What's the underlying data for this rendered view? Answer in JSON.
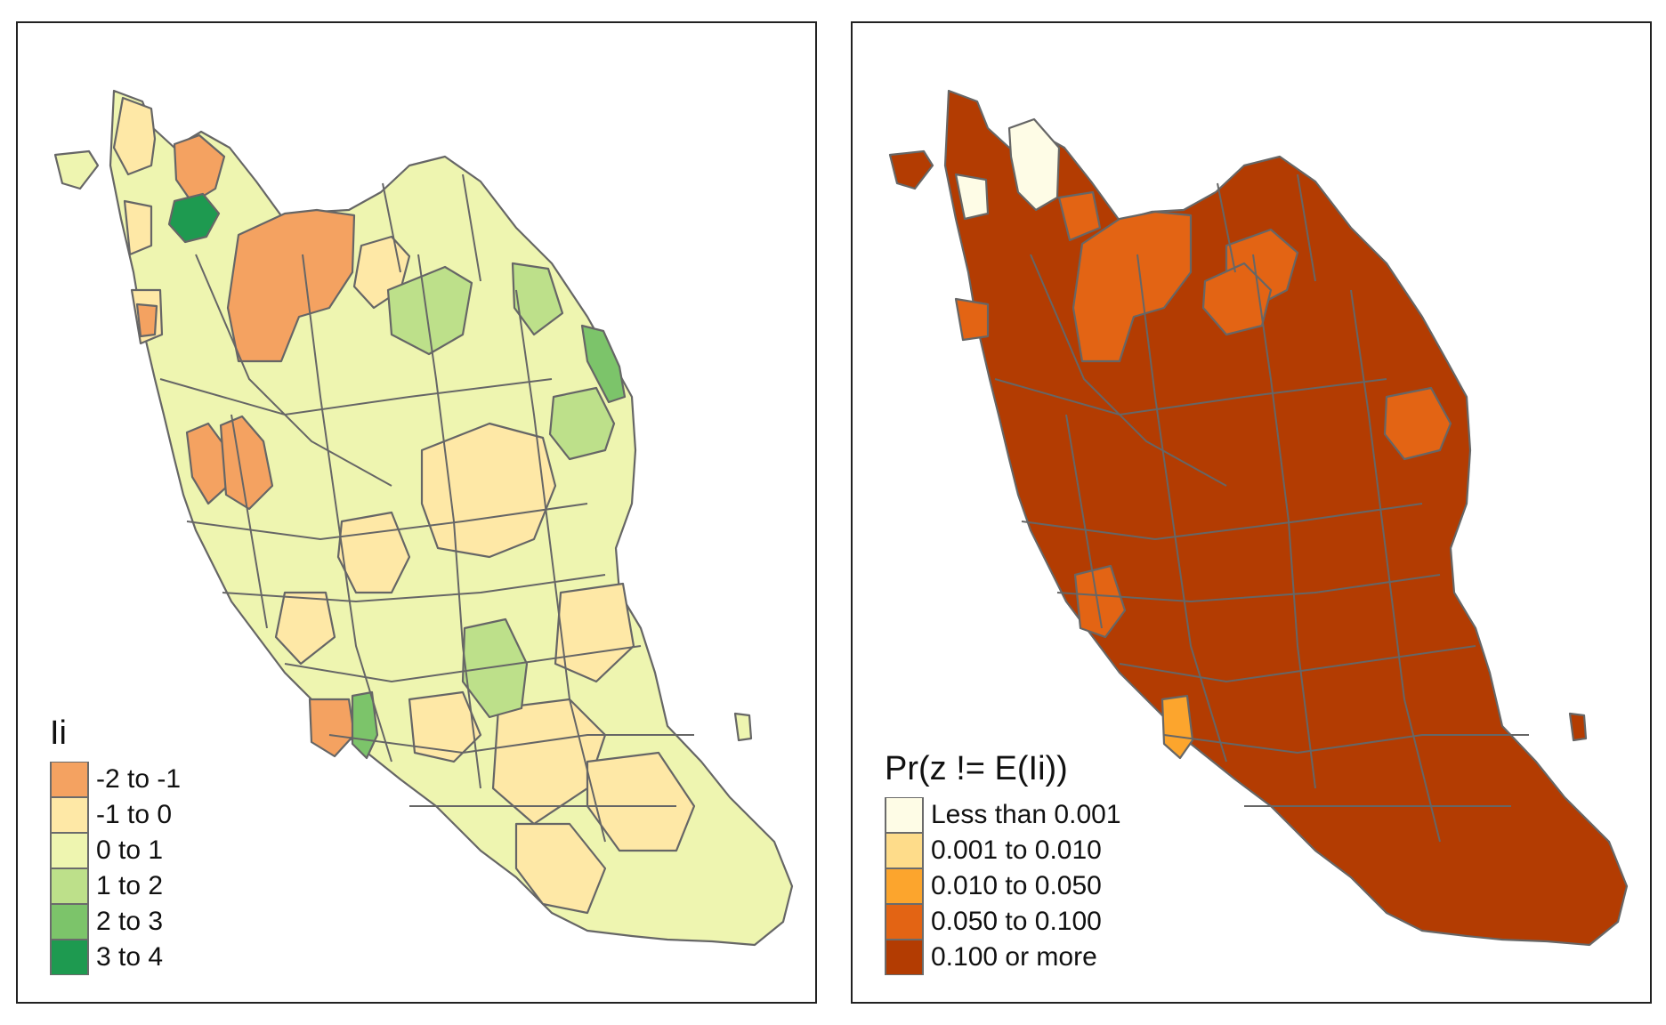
{
  "maps": [
    {
      "id": "li-map",
      "legend": {
        "title": "Ii",
        "items": [
          {
            "label": "-2 to -1",
            "color": "#f4a261"
          },
          {
            "label": "-1 to 0",
            "color": "#fee8a6"
          },
          {
            "label": "0 to 1",
            "color": "#eef5b0"
          },
          {
            "label": "1 to 2",
            "color": "#bde08a"
          },
          {
            "label": "2 to 3",
            "color": "#7cc46a"
          },
          {
            "label": "3 to 4",
            "color": "#1e9a50"
          }
        ]
      },
      "base_color": "#eef5b0"
    },
    {
      "id": "pvalue-map",
      "legend": {
        "title": "Pr(z != E(Ii))",
        "items": [
          {
            "label": "Less than 0.001",
            "color": "#fefce6"
          },
          {
            "label": "0.001 to 0.010",
            "color": "#fedc8a"
          },
          {
            "label": "0.010 to 0.050",
            "color": "#fca52d"
          },
          {
            "label": "0.050 to 0.100",
            "color": "#e36414"
          },
          {
            "label": "0.100 or more",
            "color": "#b33c02"
          }
        ]
      },
      "base_color": "#b33c02"
    }
  ]
}
